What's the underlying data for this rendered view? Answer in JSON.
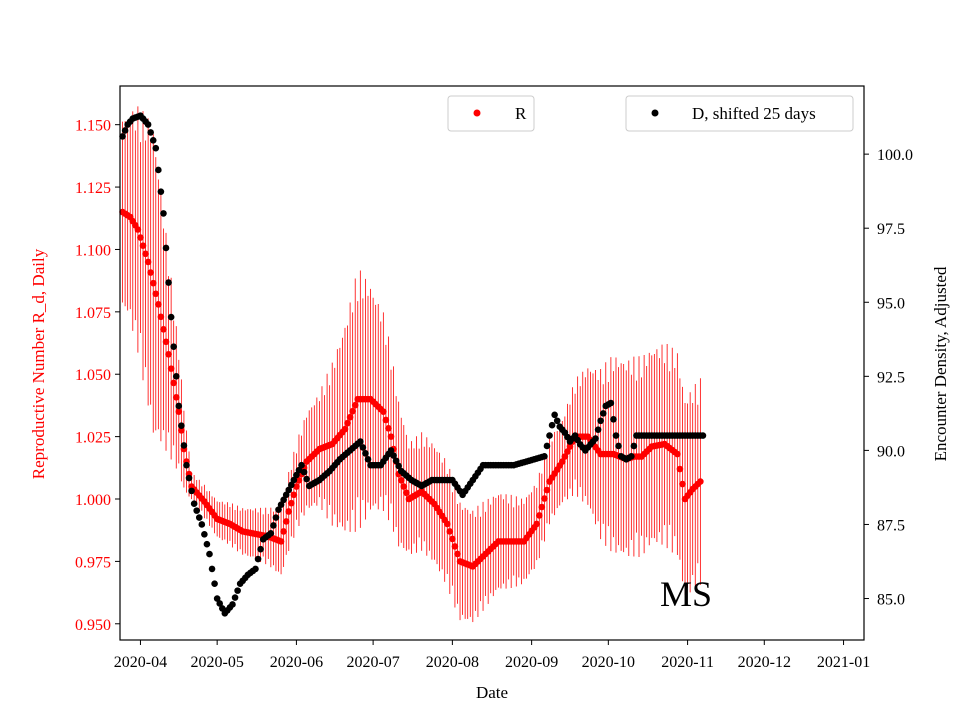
{
  "chart_data": {
    "type": "scatter",
    "title": "",
    "xlabel": "Date",
    "ylabel_left": "Reproductive Number R_d, Daily",
    "ylabel_right": "Encounter Density, Adjusted",
    "annotation": "MS",
    "x_ticks": [
      "2020-04",
      "2020-05",
      "2020-06",
      "2020-07",
      "2020-08",
      "2020-09",
      "2020-10",
      "2020-11",
      "2020-12",
      "2021-01"
    ],
    "x_range_days": [
      -8,
      283
    ],
    "y_left_ticks": [
      "0.950",
      "0.975",
      "1.000",
      "1.025",
      "1.050",
      "1.075",
      "1.100",
      "1.125",
      "1.150"
    ],
    "y_left_range": [
      0.9435,
      1.1655
    ],
    "y_right_ticks": [
      "85.0",
      "87.5",
      "90.0",
      "92.5",
      "95.0",
      "97.5",
      "100.0"
    ],
    "y_right_range": [
      83.6,
      102.3
    ],
    "colors": {
      "R": "#ff0000",
      "D": "#000000",
      "axis": "#000000"
    },
    "legend": [
      {
        "label": "R",
        "color": "#ff0000",
        "position": "top-center"
      },
      {
        "label": "D, shifted 25 days",
        "color": "#000000",
        "position": "top-right"
      }
    ],
    "series": [
      {
        "name": "R",
        "axis": "left",
        "color": "#ff0000",
        "knots_day": [
          -7,
          -4,
          -1,
          3,
          7,
          11,
          15,
          17,
          20,
          25,
          30,
          35,
          40,
          45,
          50,
          55,
          58,
          61,
          65,
          70,
          75,
          80,
          85,
          90,
          95,
          98,
          101,
          105,
          110,
          115,
          120,
          125,
          130,
          135,
          140,
          145,
          150,
          155,
          160,
          165,
          170,
          175,
          180,
          185,
          190,
          193,
          196,
          200,
          205,
          210,
          213,
          216,
          219
        ],
        "knots_value": [
          1.115,
          1.113,
          1.108,
          1.095,
          1.078,
          1.058,
          1.035,
          1.02,
          1.005,
          0.999,
          0.992,
          0.99,
          0.987,
          0.986,
          0.985,
          0.983,
          0.995,
          1.005,
          1.015,
          1.02,
          1.022,
          1.028,
          1.04,
          1.04,
          1.035,
          1.025,
          1.01,
          1.0,
          1.003,
          0.998,
          0.99,
          0.975,
          0.973,
          0.978,
          0.983,
          0.983,
          0.983,
          0.99,
          1.007,
          1.015,
          1.025,
          1.025,
          1.018,
          1.018,
          1.016,
          1.017,
          1.017,
          1.021,
          1.022,
          1.018,
          1.0,
          1.004,
          1.007
        ],
        "err_knots_day": [
          -5,
          5,
          20,
          50,
          60,
          70,
          85,
          95,
          105,
          120,
          130,
          150,
          165,
          175,
          185,
          200,
          210,
          219
        ],
        "err_knots_halfwidth": [
          0.035,
          0.055,
          0.005,
          0.01,
          0.015,
          0.02,
          0.046,
          0.035,
          0.02,
          0.022,
          0.02,
          0.015,
          0.015,
          0.025,
          0.035,
          0.035,
          0.036,
          0.036
        ]
      },
      {
        "name": "D, shifted 25 days",
        "axis": "right",
        "color": "#000000",
        "knots_day": [
          -7,
          -5,
          -3,
          0,
          3,
          6,
          9,
          12,
          15,
          18,
          21,
          24,
          27,
          30,
          33,
          36,
          39,
          42,
          45,
          48,
          51,
          54,
          57,
          60,
          63,
          66,
          70,
          74,
          78,
          82,
          86,
          90,
          94,
          98,
          102,
          106,
          110,
          114,
          118,
          122,
          126,
          130,
          134,
          138,
          142,
          146,
          150,
          154,
          158,
          160,
          162,
          164,
          166,
          168,
          170,
          172,
          174,
          176,
          178,
          180,
          182,
          184,
          186,
          188,
          190,
          192,
          194,
          196,
          198,
          200,
          202,
          204,
          206,
          208,
          210,
          212,
          214,
          216,
          218,
          220
        ],
        "knots_value": [
          100.6,
          101.0,
          101.2,
          101.3,
          101.0,
          100.2,
          98.0,
          94.5,
          91.5,
          89.5,
          88.2,
          87.5,
          86.5,
          85.0,
          84.5,
          84.8,
          85.5,
          85.8,
          86.0,
          87.0,
          87.2,
          88.0,
          88.5,
          89.0,
          89.5,
          88.8,
          89.0,
          89.3,
          89.7,
          90.0,
          90.3,
          89.5,
          89.5,
          90.0,
          89.3,
          89.0,
          88.8,
          89.0,
          89.0,
          89.0,
          88.5,
          89.0,
          89.5,
          89.5,
          89.5,
          89.5,
          89.6,
          89.7,
          89.8,
          90.5,
          91.2,
          90.8,
          90.6,
          90.3,
          90.5,
          90.2,
          90.0,
          90.2,
          90.4,
          91.0,
          91.5,
          91.6,
          90.5,
          89.8,
          89.7,
          89.8,
          90.5,
          90.5,
          90.5,
          90.5,
          90.5,
          90.5,
          90.5,
          90.5,
          90.5,
          90.5,
          90.5,
          90.5,
          90.5,
          90.5
        ]
      }
    ]
  }
}
